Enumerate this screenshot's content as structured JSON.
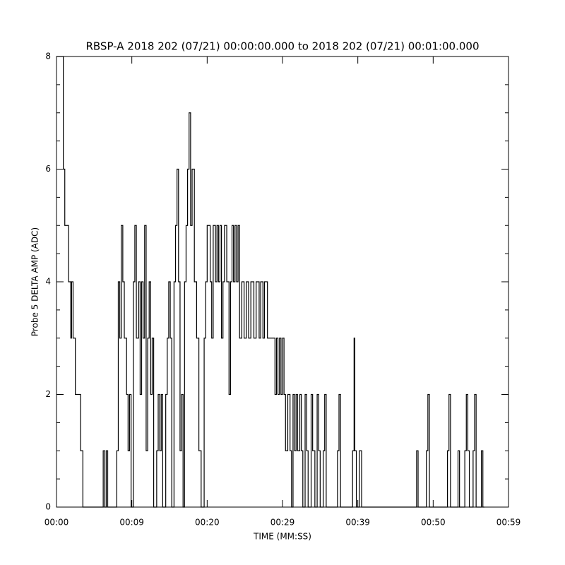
{
  "chart_data": {
    "type": "step",
    "title": "RBSP-A 2018 202 (07/21) 00:00:00.000 to 2018 202 (07/21) 00:01:00.000",
    "x_label": "TIME (MM:SS)",
    "y_label": "Probe 5 DELTA AMP (ADC)",
    "xlim": [
      0,
      60
    ],
    "xticks": [
      {
        "value": 0,
        "label": "00:00"
      },
      {
        "value": 10,
        "label": "00:09"
      },
      {
        "value": 20,
        "label": "00:20"
      },
      {
        "value": 30,
        "label": "00:29"
      },
      {
        "value": 40,
        "label": "00:39"
      },
      {
        "value": 50,
        "label": "00:50"
      },
      {
        "value": 60,
        "label": "00:59"
      }
    ],
    "ylim": [
      0,
      8
    ],
    "yticks": [
      0,
      2,
      4,
      6,
      8
    ],
    "series": [
      {
        "color": "#000000",
        "x": [
          0,
          0.9,
          1.1,
          1.6,
          1.9,
          2.0,
          2.2,
          2.5,
          3.2,
          3.5,
          6.2,
          6.4,
          6.6,
          6.8,
          8.0,
          8.2,
          8.4,
          8.6,
          8.8,
          9.0,
          9.3,
          9.5,
          9.7,
          9.9,
          10.2,
          10.4,
          10.6,
          10.9,
          11.1,
          11.3,
          11.5,
          11.7,
          11.9,
          12.1,
          12.3,
          12.5,
          12.7,
          12.9,
          13.3,
          13.5,
          13.7,
          13.9,
          14.1,
          14.5,
          14.7,
          14.9,
          15.1,
          15.3,
          15.6,
          15.8,
          16.0,
          16.2,
          16.4,
          16.6,
          16.8,
          17.0,
          17.2,
          17.4,
          17.6,
          17.8,
          18.0,
          18.3,
          18.6,
          18.9,
          19.2,
          19.6,
          19.8,
          20.0,
          20.4,
          20.6,
          20.8,
          21.1,
          21.3,
          21.5,
          21.7,
          21.9,
          22.1,
          22.3,
          22.6,
          22.9,
          23.1,
          23.3,
          23.5,
          23.7,
          23.9,
          24.1,
          24.3,
          24.6,
          24.9,
          25.2,
          25.5,
          25.8,
          26.2,
          26.5,
          26.9,
          27.1,
          27.4,
          27.6,
          28.0,
          29.0,
          29.2,
          29.4,
          29.6,
          29.8,
          30.0,
          30.2,
          30.4,
          30.7,
          31.0,
          31.2,
          31.4,
          31.6,
          31.8,
          32.0,
          32.3,
          32.5,
          32.7,
          33.0,
          33.2,
          33.4,
          33.8,
          34.0,
          34.3,
          34.6,
          34.8,
          35.0,
          35.4,
          35.6,
          35.8,
          37.3,
          37.5,
          37.7,
          39.3,
          39.5,
          39.6,
          39.8,
          40.2,
          40.5,
          47.8,
          48.0,
          49.1,
          49.3,
          49.5,
          51.9,
          52.1,
          52.3,
          53.3,
          53.5,
          54.2,
          54.4,
          54.6,
          54.8,
          55.3,
          55.5,
          55.7,
          56.4,
          56.6,
          56.8
        ],
        "values": [
          8,
          6,
          5,
          4,
          3,
          4,
          3,
          2,
          1,
          0,
          1,
          0,
          1,
          0,
          1,
          4,
          3,
          5,
          4,
          3,
          2,
          1,
          2,
          0,
          4,
          5,
          3,
          4,
          2,
          4,
          3,
          5,
          1,
          3,
          4,
          2,
          3,
          0,
          1,
          2,
          1,
          2,
          0,
          2,
          3,
          4,
          3,
          0,
          4,
          5,
          6,
          4,
          1,
          2,
          0,
          4,
          5,
          6,
          7,
          5,
          6,
          4,
          3,
          1,
          0,
          3,
          4,
          5,
          4,
          3,
          5,
          4,
          5,
          4,
          5,
          3,
          4,
          5,
          4,
          2,
          4,
          5,
          4,
          5,
          4,
          5,
          3,
          4,
          3,
          4,
          3,
          4,
          3,
          4,
          3,
          4,
          3,
          4,
          3,
          2,
          3,
          2,
          3,
          2,
          3,
          2,
          1,
          2,
          1,
          0,
          2,
          1,
          2,
          1,
          2,
          1,
          0,
          2,
          1,
          0,
          2,
          1,
          0,
          2,
          1,
          0,
          1,
          2,
          0,
          1,
          2,
          0,
          1,
          3,
          1,
          0,
          1,
          0,
          1,
          0,
          1,
          2,
          0,
          1,
          2,
          0,
          1,
          0,
          1,
          2,
          1,
          0,
          1,
          2,
          0,
          1,
          0,
          0
        ]
      }
    ]
  }
}
